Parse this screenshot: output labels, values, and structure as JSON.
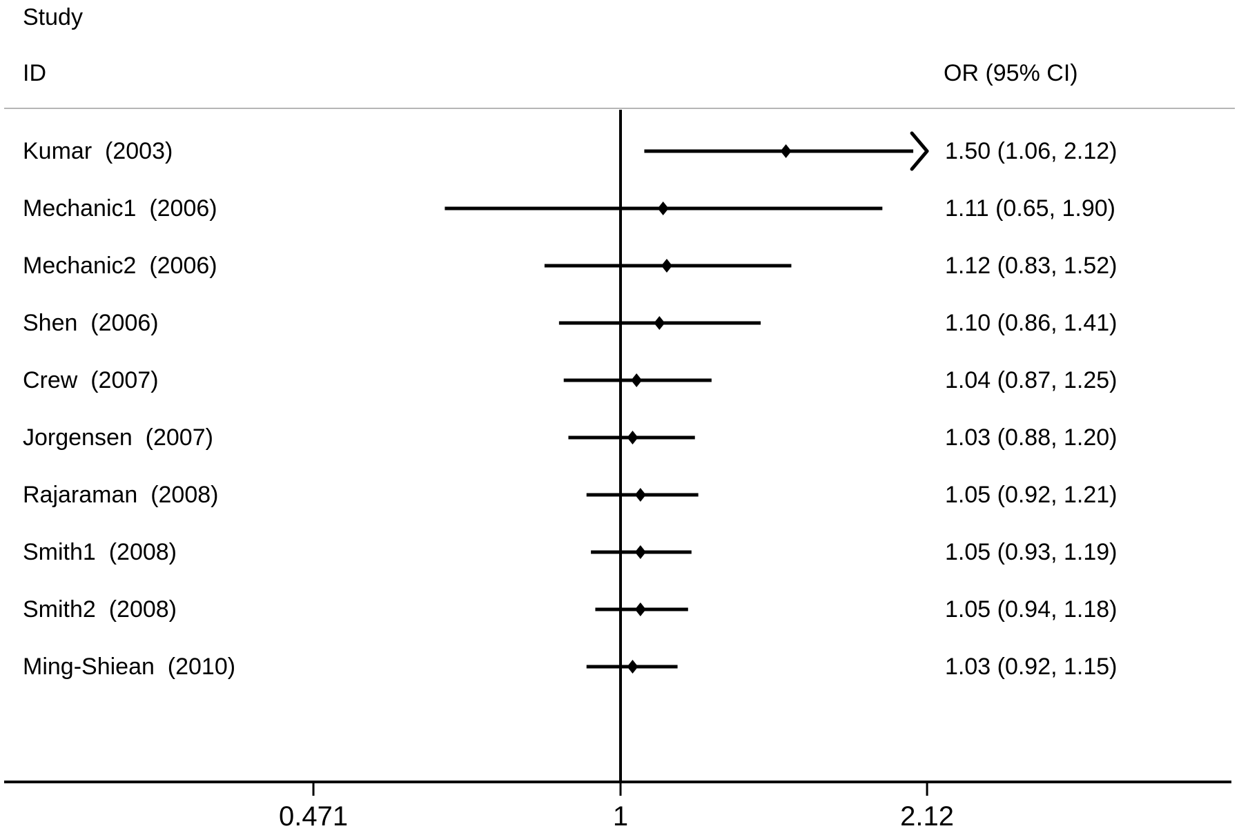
{
  "header": {
    "study_line1": "Study",
    "study_line2": "ID",
    "or_header": "OR (95% CI)"
  },
  "colors": {
    "text": "#000000",
    "plot_lines": "#000000",
    "header_separator": "#b5b5b5",
    "background": "#ffffff"
  },
  "chart_data": {
    "type": "scatter",
    "chart_kind": "forest-plot",
    "title": "",
    "left_header": [
      "Study",
      "ID"
    ],
    "right_header": "OR (95% CI)",
    "x_axis": {
      "scale": "log",
      "ticks": [
        0.471,
        1,
        2.12
      ],
      "tick_labels": [
        "0.471",
        "1",
        "2.12"
      ],
      "reference_line": 1,
      "xlim": [
        0.471,
        2.12
      ]
    },
    "legend": "none",
    "grid": false,
    "studies": [
      {
        "label": "Kumar  (2003)",
        "or": 1.5,
        "ci_lower": 1.06,
        "ci_upper": 2.12,
        "or_ci_text": "1.50 (1.06, 2.12)",
        "ci_clipped_right": true
      },
      {
        "label": "Mechanic1  (2006)",
        "or": 1.11,
        "ci_lower": 0.65,
        "ci_upper": 1.9,
        "or_ci_text": "1.11 (0.65, 1.90)",
        "ci_clipped_right": false
      },
      {
        "label": "Mechanic2  (2006)",
        "or": 1.12,
        "ci_lower": 0.83,
        "ci_upper": 1.52,
        "or_ci_text": "1.12 (0.83, 1.52)",
        "ci_clipped_right": false
      },
      {
        "label": "Shen  (2006)",
        "or": 1.1,
        "ci_lower": 0.86,
        "ci_upper": 1.41,
        "or_ci_text": "1.10 (0.86, 1.41)",
        "ci_clipped_right": false
      },
      {
        "label": "Crew  (2007)",
        "or": 1.04,
        "ci_lower": 0.87,
        "ci_upper": 1.25,
        "or_ci_text": "1.04 (0.87, 1.25)",
        "ci_clipped_right": false
      },
      {
        "label": "Jorgensen  (2007)",
        "or": 1.03,
        "ci_lower": 0.88,
        "ci_upper": 1.2,
        "or_ci_text": "1.03 (0.88, 1.20)",
        "ci_clipped_right": false
      },
      {
        "label": "Rajaraman  (2008)",
        "or": 1.05,
        "ci_lower": 0.92,
        "ci_upper": 1.21,
        "or_ci_text": "1.05 (0.92, 1.21)",
        "ci_clipped_right": false
      },
      {
        "label": "Smith1  (2008)",
        "or": 1.05,
        "ci_lower": 0.93,
        "ci_upper": 1.19,
        "or_ci_text": "1.05 (0.93, 1.19)",
        "ci_clipped_right": false
      },
      {
        "label": "Smith2  (2008)",
        "or": 1.05,
        "ci_lower": 0.94,
        "ci_upper": 1.18,
        "or_ci_text": "1.05 (0.94, 1.18)",
        "ci_clipped_right": false
      },
      {
        "label": "Ming-Shiean  (2010)",
        "or": 1.03,
        "ci_lower": 0.92,
        "ci_upper": 1.15,
        "or_ci_text": "1.03 (0.92, 1.15)",
        "ci_clipped_right": false
      }
    ]
  }
}
